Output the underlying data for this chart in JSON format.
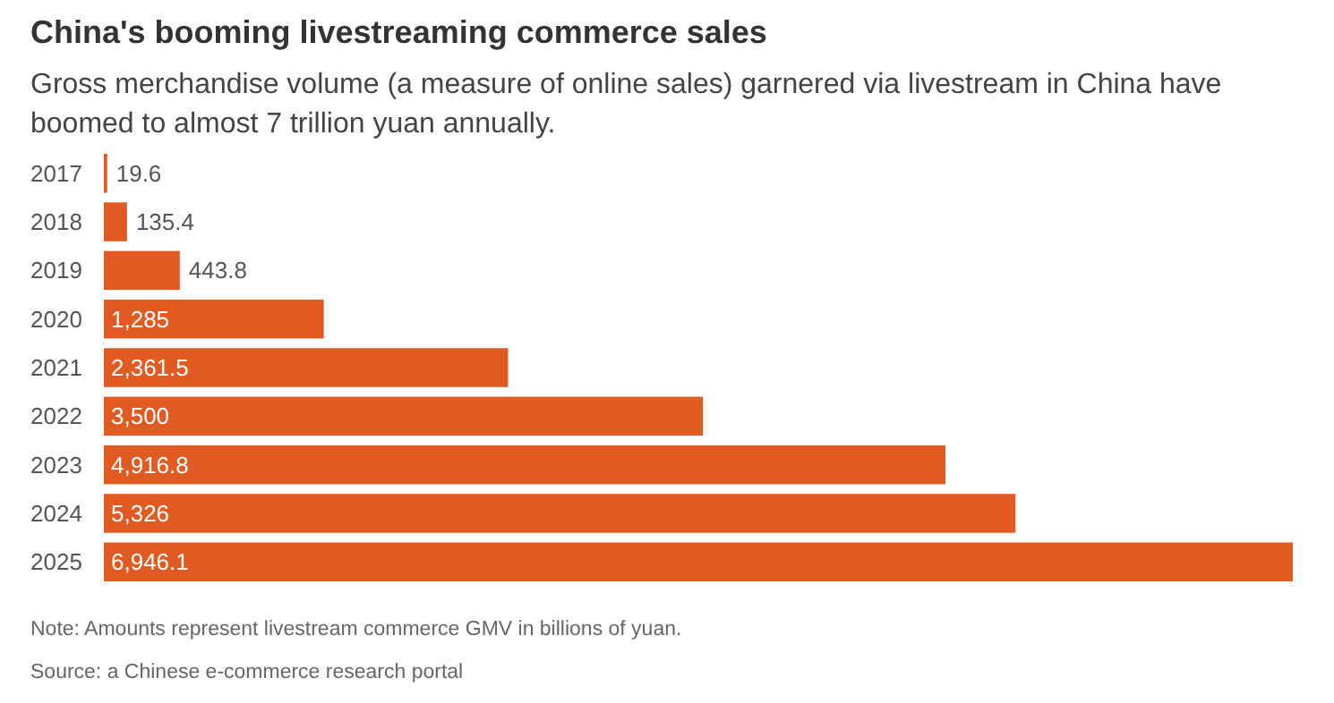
{
  "chart_data": {
    "type": "bar",
    "orientation": "horizontal",
    "title": "China's booming livestreaming commerce sales",
    "subtitle": "Gross merchandise volume (a measure of online sales) garnered via livestream in China have boomed to almost 7 trillion yuan annually.",
    "categories": [
      "2017",
      "2018",
      "2019",
      "2020",
      "2021",
      "2022",
      "2023",
      "2024",
      "2025"
    ],
    "values": [
      19.6,
      135.4,
      443.8,
      1285,
      2361.5,
      3500,
      4916.8,
      5326,
      6946.1
    ],
    "value_labels": [
      "19.6",
      "135.4",
      "443.8",
      "1,285",
      "2,361.5",
      "3,500",
      "4,916.8",
      "5,326",
      "6,946.1"
    ],
    "color": "#e05a22",
    "annotations": [
      "Note: Amounts represent livestream commerce GMV in billions of yuan.",
      "Source: a Chinese e-commerce research portal"
    ]
  }
}
